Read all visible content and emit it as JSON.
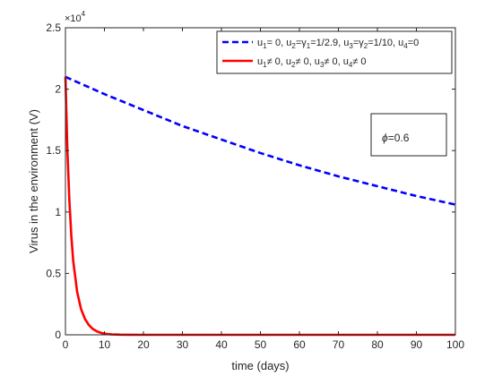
{
  "chart_data": {
    "type": "line",
    "xlabel": "time (days)",
    "ylabel": "Virus in the environment (V)",
    "y_exponent_label": "×10",
    "y_exponent_power": "4",
    "xlim": [
      0,
      100
    ],
    "ylim": [
      0,
      25000
    ],
    "xticks": [
      0,
      10,
      20,
      30,
      40,
      50,
      60,
      70,
      80,
      90,
      100
    ],
    "yticks": [
      0,
      5000,
      10000,
      15000,
      20000,
      25000
    ],
    "ytick_labels": [
      "0",
      "0.5",
      "1",
      "1.5",
      "2",
      "2.5"
    ],
    "grid": false,
    "legend_position": "top-right",
    "series": [
      {
        "name": "u1= 0, u2=γ1=1/2.9, u3=γ2=1/10, u4=0",
        "name_parts": [
          {
            "t": "u"
          },
          {
            "s": "1"
          },
          {
            "t": "= 0, u"
          },
          {
            "s": "2"
          },
          {
            "t": "=γ"
          },
          {
            "s": "1"
          },
          {
            "t": "=1/2.9, u"
          },
          {
            "s": "3"
          },
          {
            "t": "=γ"
          },
          {
            "s": "2"
          },
          {
            "t": "=1/10, u"
          },
          {
            "s": "4"
          },
          {
            "t": "=0"
          }
        ],
        "color": "#0000ff",
        "style": "dashed",
        "x": [
          0,
          10,
          20,
          30,
          40,
          50,
          60,
          70,
          80,
          90,
          100
        ],
        "y": [
          21000,
          19600,
          18300,
          17000,
          15900,
          14800,
          13800,
          12900,
          12100,
          11300,
          10600
        ]
      },
      {
        "name": "u1≠ 0, u2≠ 0, u3≠ 0, u4≠ 0",
        "name_parts": [
          {
            "t": "u"
          },
          {
            "s": "1"
          },
          {
            "t": "≠ 0, u"
          },
          {
            "s": "2"
          },
          {
            "t": "≠ 0, u"
          },
          {
            "s": "3"
          },
          {
            "t": "≠ 0, u"
          },
          {
            "s": "4"
          },
          {
            "t": "≠ 0"
          }
        ],
        "color": "#ff0000",
        "style": "solid",
        "x": [
          0,
          0.5,
          1,
          1.5,
          2,
          3,
          4,
          5,
          6,
          7,
          8,
          9,
          10,
          11,
          12,
          14,
          16,
          20,
          30,
          100
        ],
        "y": [
          21000,
          15000,
          11000,
          8100,
          6000,
          3500,
          2100,
          1300,
          800,
          480,
          290,
          170,
          100,
          60,
          35,
          12,
          4,
          0,
          0,
          0
        ]
      }
    ],
    "annotation": {
      "symbol": "ϕ",
      "text": "=0.6"
    }
  }
}
